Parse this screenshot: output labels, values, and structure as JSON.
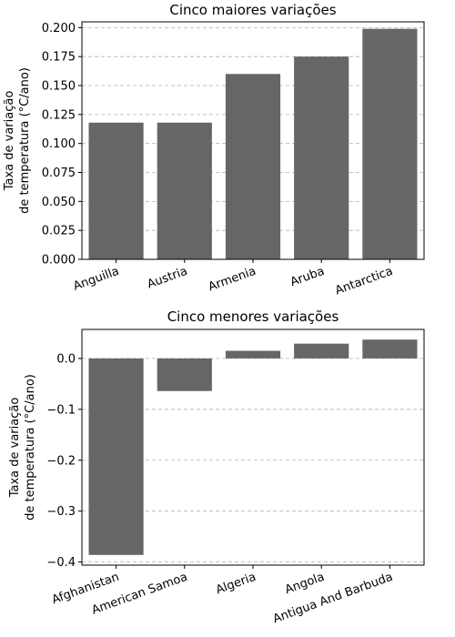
{
  "chart_data": [
    {
      "type": "bar",
      "title": "Cinco maiores variações",
      "ylabel_lines": [
        "Taxa de variação",
        "de temperatura (°C/ano)"
      ],
      "categories": [
        "Anguilla",
        "Austria",
        "Armenia",
        "Aruba",
        "Antarctica"
      ],
      "values": [
        0.118,
        0.118,
        0.16,
        0.175,
        0.199
      ],
      "ylim": [
        0,
        0.205
      ],
      "yticks": [
        0.0,
        0.025,
        0.05,
        0.075,
        0.1,
        0.125,
        0.15,
        0.175,
        0.2
      ],
      "ytick_labels": [
        "0.000",
        "0.025",
        "0.050",
        "0.075",
        "0.100",
        "0.125",
        "0.150",
        "0.175",
        "0.200"
      ],
      "grid": "y-dashed",
      "bar_color": "#666666",
      "xtick_rotation": 20
    },
    {
      "type": "bar",
      "title": "Cinco menores variações",
      "ylabel_lines": [
        "Taxa de variação",
        "de temperatura (°C/ano)"
      ],
      "categories": [
        "Afghanistan",
        "American Samoa",
        "Algeria",
        "Angola",
        "Antigua And Barbuda"
      ],
      "values": [
        -0.386,
        -0.064,
        0.015,
        0.029,
        0.037
      ],
      "ylim": [
        -0.406,
        0.057
      ],
      "yticks": [
        0.0,
        -0.1,
        -0.2,
        -0.3,
        -0.4
      ],
      "ytick_labels": [
        "0.0",
        "−0.1",
        "−0.2",
        "−0.3",
        "−0.4"
      ],
      "grid": "y-dashed",
      "bar_color": "#666666",
      "xtick_rotation": 20
    }
  ]
}
